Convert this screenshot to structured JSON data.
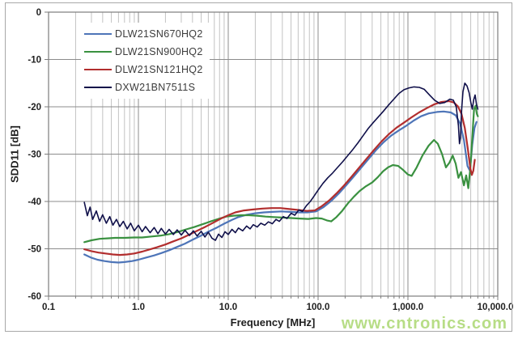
{
  "chart_data": {
    "type": "line",
    "title": "",
    "xlabel": "Frequency [MHz]",
    "ylabel": "SDD11 [dB]",
    "x_scale": "log",
    "xlim": [
      0.1,
      10000
    ],
    "ylim": [
      -60,
      0
    ],
    "x_ticks": [
      0.1,
      1,
      10,
      100,
      1000,
      10000
    ],
    "x_tick_labels": [
      "0.1",
      "1.0",
      "10.0",
      "100.0",
      "1,000.0",
      "10,000.0"
    ],
    "y_ticks": [
      0,
      -10,
      -20,
      -30,
      -40,
      -50,
      -60
    ],
    "y_tick_labels": [
      "0",
      "-10",
      "-20",
      "-30",
      "-40",
      "-50",
      "-60"
    ],
    "grid": "major horizontal every 10 dB; log major+minor vertical",
    "legend_position": "top-left-inside",
    "series": [
      {
        "name": "DLW21SN670HQ2",
        "color": "#4e75b8",
        "width": 2.2,
        "points": [
          [
            0.25,
            -51.2
          ],
          [
            0.3,
            -51.9
          ],
          [
            0.35,
            -52.3
          ],
          [
            0.42,
            -52.6
          ],
          [
            0.5,
            -52.8
          ],
          [
            0.6,
            -52.9
          ],
          [
            0.7,
            -52.8
          ],
          [
            0.85,
            -52.6
          ],
          [
            1.0,
            -52.3
          ],
          [
            1.2,
            -51.9
          ],
          [
            1.5,
            -51.4
          ],
          [
            1.8,
            -50.9
          ],
          [
            2.2,
            -50.3
          ],
          [
            2.7,
            -49.6
          ],
          [
            3.3,
            -48.9
          ],
          [
            4.0,
            -48.1
          ],
          [
            5.0,
            -47.2
          ],
          [
            6.0,
            -46.4
          ],
          [
            7.5,
            -45.5
          ],
          [
            9.0,
            -44.7
          ],
          [
            11,
            -43.9
          ],
          [
            13,
            -43.3
          ],
          [
            16,
            -42.8
          ],
          [
            20,
            -42.5
          ],
          [
            25,
            -42.3
          ],
          [
            31,
            -42.2
          ],
          [
            39,
            -42.1
          ],
          [
            49,
            -42.2
          ],
          [
            61,
            -42.3
          ],
          [
            76,
            -42.3
          ],
          [
            95,
            -42.1
          ],
          [
            115,
            -41.2
          ],
          [
            140,
            -39.9
          ],
          [
            170,
            -38.3
          ],
          [
            205,
            -36.6
          ],
          [
            250,
            -34.7
          ],
          [
            300,
            -32.9
          ],
          [
            365,
            -31.0
          ],
          [
            440,
            -29.2
          ],
          [
            535,
            -27.5
          ],
          [
            650,
            -26.1
          ],
          [
            790,
            -25.0
          ],
          [
            960,
            -24.0
          ],
          [
            1160,
            -22.9
          ],
          [
            1400,
            -22.0
          ],
          [
            1700,
            -21.4
          ],
          [
            2100,
            -21.1
          ],
          [
            2500,
            -21.0
          ],
          [
            3000,
            -21.2
          ],
          [
            3400,
            -21.8
          ],
          [
            3800,
            -23.5
          ],
          [
            4200,
            -27.0
          ],
          [
            4600,
            -32.5
          ],
          [
            4900,
            -33.5
          ],
          [
            5200,
            -28.0
          ],
          [
            5500,
            -24.5
          ],
          [
            5800,
            -23.2
          ]
        ]
      },
      {
        "name": "DLW21SN900HQ2",
        "color": "#3a9140",
        "width": 2.2,
        "points": [
          [
            0.25,
            -48.6
          ],
          [
            0.3,
            -48.2
          ],
          [
            0.37,
            -47.9
          ],
          [
            0.45,
            -47.8
          ],
          [
            0.55,
            -47.7
          ],
          [
            0.7,
            -47.7
          ],
          [
            0.9,
            -47.6
          ],
          [
            1.1,
            -47.6
          ],
          [
            1.4,
            -47.4
          ],
          [
            1.8,
            -47.2
          ],
          [
            2.2,
            -46.9
          ],
          [
            2.8,
            -46.4
          ],
          [
            3.4,
            -45.9
          ],
          [
            4.2,
            -45.4
          ],
          [
            5.2,
            -44.8
          ],
          [
            6.4,
            -44.2
          ],
          [
            7.8,
            -43.7
          ],
          [
            9.5,
            -43.2
          ],
          [
            11.5,
            -43.0
          ],
          [
            14,
            -42.9
          ],
          [
            17,
            -42.9
          ],
          [
            21,
            -43.0
          ],
          [
            26,
            -43.2
          ],
          [
            32,
            -43.3
          ],
          [
            40,
            -43.4
          ],
          [
            50,
            -43.5
          ],
          [
            62,
            -43.6
          ],
          [
            78,
            -43.7
          ],
          [
            95,
            -43.5
          ],
          [
            110,
            -43.6
          ],
          [
            125,
            -44.0
          ],
          [
            140,
            -44.2
          ],
          [
            160,
            -43.3
          ],
          [
            185,
            -42.0
          ],
          [
            215,
            -40.4
          ],
          [
            250,
            -39.0
          ],
          [
            290,
            -37.8
          ],
          [
            340,
            -36.8
          ],
          [
            400,
            -36.0
          ],
          [
            460,
            -34.9
          ],
          [
            530,
            -33.6
          ],
          [
            600,
            -32.8
          ],
          [
            680,
            -32.3
          ],
          [
            780,
            -32.5
          ],
          [
            880,
            -33.3
          ],
          [
            1000,
            -34.3
          ],
          [
            1100,
            -34.6
          ],
          [
            1250,
            -32.8
          ],
          [
            1450,
            -30.3
          ],
          [
            1700,
            -28.2
          ],
          [
            1950,
            -27.0
          ],
          [
            2150,
            -27.8
          ],
          [
            2400,
            -30.0
          ],
          [
            2650,
            -32.8
          ],
          [
            2900,
            -31.8
          ],
          [
            3150,
            -30.3
          ],
          [
            3400,
            -32.0
          ],
          [
            3650,
            -35.0
          ],
          [
            3900,
            -33.8
          ],
          [
            4200,
            -36.6
          ],
          [
            4450,
            -34.5
          ],
          [
            4700,
            -37.2
          ],
          [
            4950,
            -33.0
          ],
          [
            5200,
            -26.5
          ],
          [
            5450,
            -20.5
          ],
          [
            5650,
            -19.8
          ],
          [
            5850,
            -21.5
          ],
          [
            6000,
            -22.0
          ]
        ]
      },
      {
        "name": "DLW21SN121HQ2",
        "color": "#b22e2e",
        "width": 2.2,
        "points": [
          [
            0.25,
            -50.1
          ],
          [
            0.3,
            -50.5
          ],
          [
            0.36,
            -50.8
          ],
          [
            0.43,
            -51.0
          ],
          [
            0.52,
            -51.2
          ],
          [
            0.62,
            -51.3
          ],
          [
            0.75,
            -51.2
          ],
          [
            0.9,
            -51.0
          ],
          [
            1.1,
            -50.6
          ],
          [
            1.3,
            -50.2
          ],
          [
            1.6,
            -49.7
          ],
          [
            2.0,
            -49.1
          ],
          [
            2.4,
            -48.5
          ],
          [
            3.0,
            -47.8
          ],
          [
            3.7,
            -47.0
          ],
          [
            4.5,
            -46.2
          ],
          [
            5.5,
            -45.4
          ],
          [
            6.8,
            -44.5
          ],
          [
            8.3,
            -43.6
          ],
          [
            10,
            -42.9
          ],
          [
            12,
            -42.3
          ],
          [
            15,
            -41.9
          ],
          [
            19,
            -41.7
          ],
          [
            24,
            -41.5
          ],
          [
            30,
            -41.4
          ],
          [
            38,
            -41.4
          ],
          [
            48,
            -41.6
          ],
          [
            60,
            -41.8
          ],
          [
            75,
            -42.0
          ],
          [
            92,
            -41.9
          ],
          [
            110,
            -41.0
          ],
          [
            133,
            -39.8
          ],
          [
            160,
            -38.3
          ],
          [
            195,
            -36.6
          ],
          [
            235,
            -34.8
          ],
          [
            285,
            -32.9
          ],
          [
            345,
            -31.0
          ],
          [
            420,
            -29.1
          ],
          [
            510,
            -27.3
          ],
          [
            620,
            -25.7
          ],
          [
            750,
            -24.4
          ],
          [
            910,
            -23.3
          ],
          [
            1100,
            -22.2
          ],
          [
            1330,
            -21.2
          ],
          [
            1610,
            -20.3
          ],
          [
            1950,
            -19.5
          ],
          [
            2350,
            -19.0
          ],
          [
            2850,
            -18.8
          ],
          [
            3250,
            -19.1
          ],
          [
            3600,
            -19.9
          ],
          [
            3950,
            -21.5
          ],
          [
            4300,
            -24.5
          ],
          [
            4650,
            -29.0
          ],
          [
            4950,
            -33.0
          ],
          [
            5150,
            -34.4
          ],
          [
            5350,
            -33.5
          ],
          [
            5550,
            -31.2
          ]
        ]
      },
      {
        "name": "DXW21BN7511S",
        "color": "#10104a",
        "width": 1.6,
        "points": [
          [
            0.25,
            -40.2
          ],
          [
            0.27,
            -43.0
          ],
          [
            0.29,
            -41.2
          ],
          [
            0.31,
            -43.8
          ],
          [
            0.34,
            -42.0
          ],
          [
            0.37,
            -44.2
          ],
          [
            0.4,
            -42.8
          ],
          [
            0.44,
            -44.6
          ],
          [
            0.48,
            -43.2
          ],
          [
            0.52,
            -45.0
          ],
          [
            0.57,
            -43.8
          ],
          [
            0.62,
            -45.3
          ],
          [
            0.68,
            -44.2
          ],
          [
            0.75,
            -45.8
          ],
          [
            0.82,
            -44.6
          ],
          [
            0.9,
            -46.2
          ],
          [
            1.0,
            -45.0
          ],
          [
            1.1,
            -46.4
          ],
          [
            1.2,
            -45.3
          ],
          [
            1.35,
            -46.6
          ],
          [
            1.5,
            -45.5
          ],
          [
            1.65,
            -46.8
          ],
          [
            1.8,
            -45.7
          ],
          [
            2.0,
            -46.9
          ],
          [
            2.2,
            -45.9
          ],
          [
            2.45,
            -47.0
          ],
          [
            2.7,
            -46.0
          ],
          [
            3.0,
            -47.1
          ],
          [
            3.3,
            -46.1
          ],
          [
            3.7,
            -47.2
          ],
          [
            4.1,
            -46.2
          ],
          [
            4.5,
            -47.3
          ],
          [
            5.0,
            -46.3
          ],
          [
            5.5,
            -47.5
          ],
          [
            6.0,
            -46.5
          ],
          [
            6.6,
            -47.8
          ],
          [
            7.2,
            -48.2
          ],
          [
            7.8,
            -46.9
          ],
          [
            8.5,
            -47.6
          ],
          [
            9.2,
            -46.4
          ],
          [
            10,
            -47.0
          ],
          [
            11,
            -45.9
          ],
          [
            12,
            -46.6
          ],
          [
            13,
            -45.6
          ],
          [
            14.5,
            -46.2
          ],
          [
            16,
            -45.2
          ],
          [
            17.5,
            -45.8
          ],
          [
            19,
            -44.9
          ],
          [
            21,
            -45.4
          ],
          [
            23,
            -44.6
          ],
          [
            25.5,
            -45.0
          ],
          [
            28,
            -44.3
          ],
          [
            31,
            -44.7
          ],
          [
            34,
            -43.8
          ],
          [
            37,
            -44.2
          ],
          [
            41,
            -43.2
          ],
          [
            45,
            -43.6
          ],
          [
            50,
            -42.5
          ],
          [
            55,
            -42.9
          ],
          [
            61,
            -41.8
          ],
          [
            67,
            -42.1
          ],
          [
            74,
            -40.9
          ],
          [
            82,
            -40.0
          ],
          [
            90,
            -38.9
          ],
          [
            100,
            -37.6
          ],
          [
            113,
            -36.2
          ],
          [
            128,
            -35.0
          ],
          [
            145,
            -34.0
          ],
          [
            165,
            -32.8
          ],
          [
            188,
            -31.6
          ],
          [
            214,
            -30.3
          ],
          [
            244,
            -29.0
          ],
          [
            278,
            -27.6
          ],
          [
            317,
            -26.1
          ],
          [
            361,
            -24.6
          ],
          [
            412,
            -23.3
          ],
          [
            470,
            -22.1
          ],
          [
            535,
            -20.9
          ],
          [
            610,
            -19.6
          ],
          [
            695,
            -18.4
          ],
          [
            792,
            -17.2
          ],
          [
            903,
            -16.4
          ],
          [
            1030,
            -16.0
          ],
          [
            1170,
            -15.8
          ],
          [
            1340,
            -15.9
          ],
          [
            1520,
            -16.3
          ],
          [
            1740,
            -17.5
          ],
          [
            1980,
            -18.6
          ],
          [
            2260,
            -19.3
          ],
          [
            2570,
            -19.1
          ],
          [
            2930,
            -18.4
          ],
          [
            3200,
            -18.6
          ],
          [
            3450,
            -20.0
          ],
          [
            3650,
            -24.0
          ],
          [
            3750,
            -27.8
          ],
          [
            3850,
            -26.5
          ],
          [
            3950,
            -21.0
          ],
          [
            4100,
            -16.8
          ],
          [
            4300,
            -15.0
          ],
          [
            4550,
            -15.6
          ],
          [
            4800,
            -17.0
          ],
          [
            5000,
            -19.0
          ],
          [
            5200,
            -20.5
          ],
          [
            5400,
            -18.5
          ],
          [
            5600,
            -17.5
          ],
          [
            5800,
            -19.5
          ],
          [
            6000,
            -20.5
          ]
        ]
      }
    ],
    "style": {
      "grid_major_color": "#8c8c8c",
      "grid_minor_color": "#c2c2c2",
      "border_color": "#7d7d7d",
      "tick_label_color": "#1f1f1f",
      "background": "#ffffff"
    }
  },
  "watermark": {
    "text": "www.cntronics.com",
    "color": "#b7dd86"
  }
}
